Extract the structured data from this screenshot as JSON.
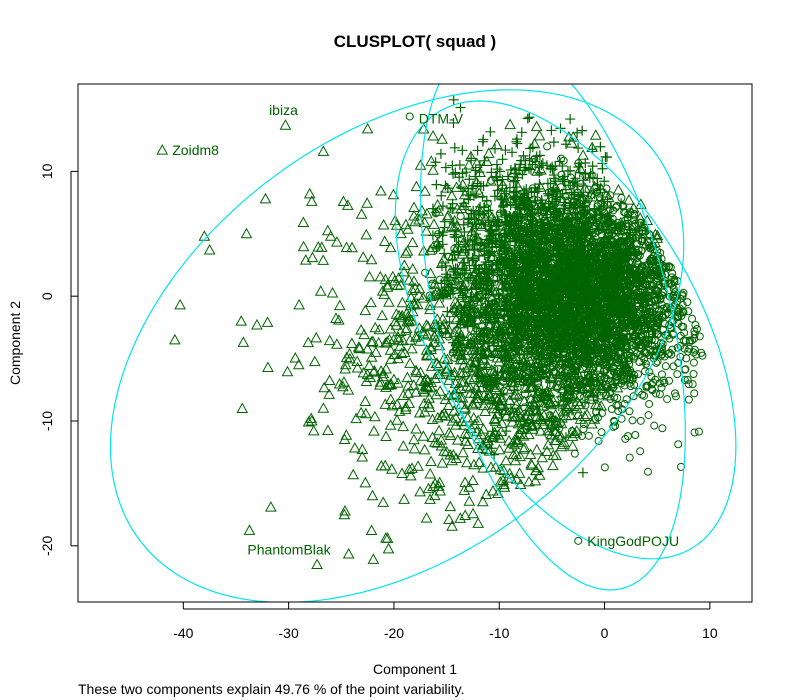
{
  "chart_data": {
    "type": "scatter",
    "title": "CLUSPLOT( squad )",
    "xlabel": "Component 1",
    "ylabel": "Component 2",
    "footnote": "These two components explain 49.76 % of the point variability.",
    "xlim": [
      -50,
      14
    ],
    "ylim": [
      -24.5,
      17
    ],
    "x_ticks": [
      -40,
      -30,
      -20,
      -10,
      0,
      10
    ],
    "y_ticks": [
      -20,
      -10,
      0,
      10
    ],
    "colors": {
      "points": "#006400",
      "ellipses": "#00E5EE",
      "frame": "#000000"
    },
    "labeled_points": [
      {
        "label": "Zoidm8",
        "x": -42.0,
        "y": 11.7,
        "marker": "triangle"
      },
      {
        "label": "ibiza",
        "x": -30.3,
        "y": 13.7,
        "marker": "triangle"
      },
      {
        "label": "DTM-V",
        "x": -18.5,
        "y": 14.4,
        "marker": "circle"
      },
      {
        "label": "KingGodPOJU",
        "x": -2.5,
        "y": -19.6,
        "marker": "circle"
      },
      {
        "label": "PhantomBlak",
        "x": -27.3,
        "y": -21.5,
        "marker": "triangle"
      }
    ],
    "ellipses": [
      {
        "cluster": 1,
        "marker": "triangle",
        "center": [
          -19.7,
          -4.0
        ],
        "semi_axes": [
          29.2,
          17.6
        ],
        "angle": 27
      },
      {
        "cluster": 2,
        "marker": "circle",
        "center": [
          -3.7,
          -2.7
        ],
        "semi_axes": [
          21.3,
          12.0
        ],
        "angle": -52
      },
      {
        "cluster": 3,
        "marker": "plus",
        "center": [
          -4.9,
          -1.4
        ],
        "semi_axes": [
          23.0,
          10.9
        ],
        "angle": -72
      }
    ],
    "clusters": [
      {
        "marker": "triangle",
        "n": 1500,
        "center": [
          -8,
          -4
        ],
        "spread": [
          8,
          7
        ],
        "outliers": [
          [
            -40.8,
            -3.5
          ],
          [
            -37.5,
            3.7
          ],
          [
            -38,
            4.8
          ],
          [
            -34.5,
            -2
          ],
          [
            -34.3,
            -3.7
          ],
          [
            -34.4,
            -9
          ],
          [
            -32,
            -2.1
          ],
          [
            -34,
            5
          ],
          [
            -29,
            -0.7
          ],
          [
            -27.8,
            -10
          ],
          [
            -28,
            8.2
          ],
          [
            -27.8,
            7.6
          ],
          [
            -26,
            4.8
          ],
          [
            -26.7,
            11.6
          ],
          [
            -32.2,
            7.8
          ],
          [
            -28.6,
            5.9
          ],
          [
            -24.5,
            3.9
          ],
          [
            -22.5,
            13.4
          ],
          [
            -12,
            -18.2
          ],
          [
            -21.2,
            -13.6
          ],
          [
            -18.4,
            -14.4
          ]
        ]
      },
      {
        "marker": "circle",
        "n": 2800,
        "center": [
          -1,
          0
        ],
        "spread": [
          5,
          4
        ]
      },
      {
        "marker": "plus",
        "n": 1200,
        "center": [
          -7,
          3
        ],
        "spread": [
          5,
          5
        ]
      }
    ]
  }
}
